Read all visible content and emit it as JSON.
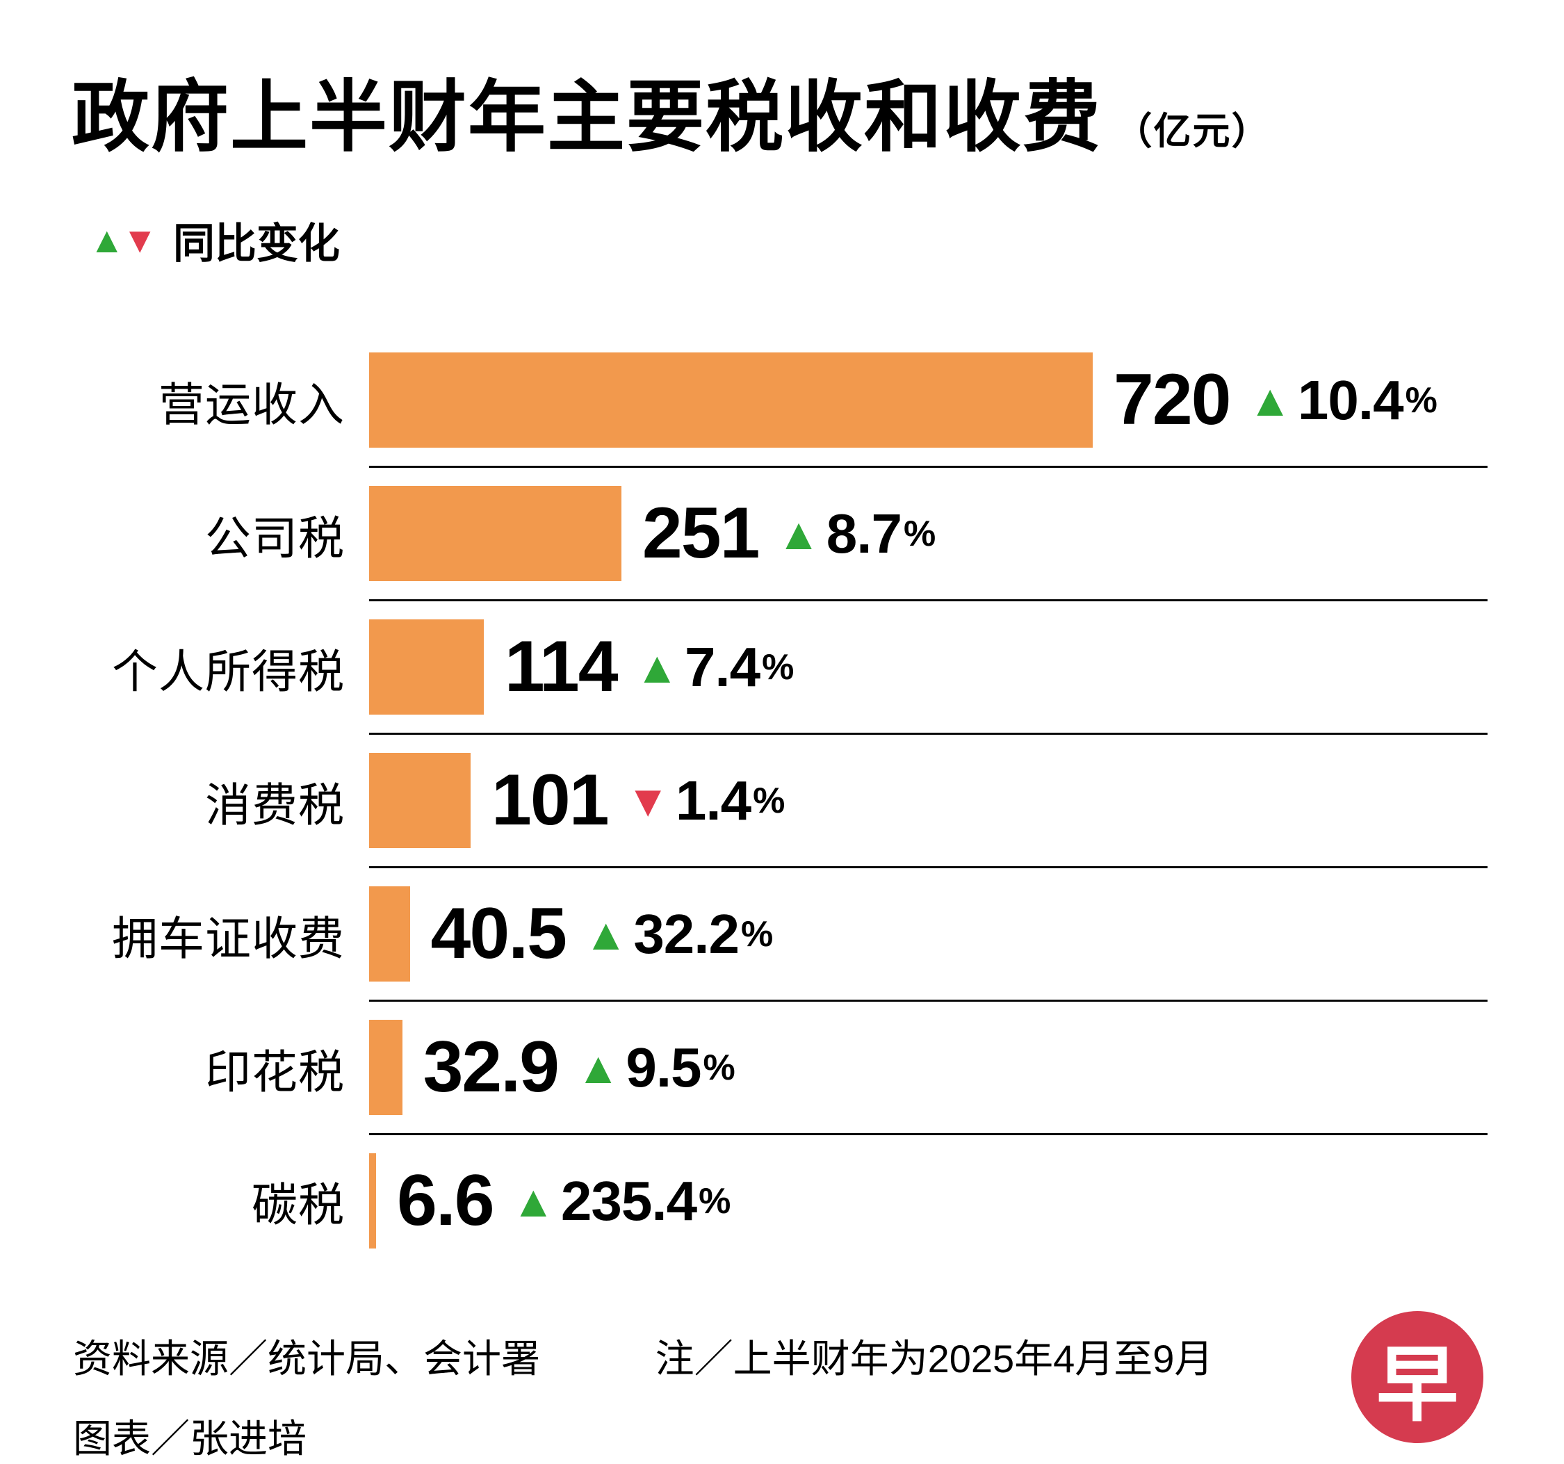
{
  "title": {
    "main": "政府上半财年主要税收和收费",
    "unit": "（亿元）"
  },
  "legend": {
    "up_symbol": "▲",
    "down_symbol": "▼",
    "label": "同比变化"
  },
  "chart_data": {
    "type": "bar",
    "orientation": "horizontal",
    "title": "政府上半财年主要税收和收费（亿元）",
    "unit": "亿元",
    "categories": [
      "营运收入",
      "公司税",
      "个人所得税",
      "消费税",
      "拥车证收费",
      "印花税",
      "碳税"
    ],
    "values": [
      720,
      251,
      114,
      101,
      40.5,
      32.9,
      6.6
    ],
    "value_labels": [
      "720",
      "251",
      "114",
      "101",
      "40.5",
      "32.9",
      "6.6"
    ],
    "yoy_change_pct": [
      10.4,
      8.7,
      7.4,
      -1.4,
      32.2,
      9.5,
      235.4
    ],
    "yoy_labels": [
      "10.4",
      "8.7",
      "7.4",
      "1.4",
      "32.2",
      "9.5",
      "235.4"
    ],
    "yoy_direction": [
      "up",
      "up",
      "up",
      "down",
      "up",
      "up",
      "up"
    ],
    "xlim": [
      0,
      720
    ],
    "grid": false,
    "legend_position": "top-left",
    "colors": {
      "bar": "#F2994D",
      "up": "#2FA838",
      "down": "#E23B4D"
    }
  },
  "footer": {
    "source": "资料来源／统计局、会计署",
    "note": "注／上半财年为2025年4月至9月",
    "credit": "图表／张进培",
    "logo_char": "早",
    "logo_color": "#D53B4F"
  }
}
